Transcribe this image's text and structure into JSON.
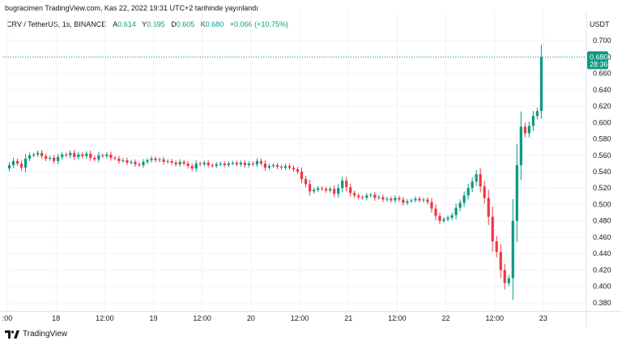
{
  "header": {
    "published_line": "bugracimen TradingView.com, Kas 22, 2022 19:31 UTC+2 tarihinde yayınlandı"
  },
  "legend": {
    "symbol": "CRV / TetherUS, 1s, BINANCE",
    "open_label": "A",
    "open_value": "0.614",
    "high_label": "Y",
    "high_value": "0.695",
    "low_label": "D",
    "low_value": "0.605",
    "close_label": "K",
    "close_value": "0.680",
    "change": "+0.066 (+10.75%)"
  },
  "currency": "USDT",
  "last_price": {
    "price": "0.680",
    "countdown": "28:36"
  },
  "footer": {
    "brand": "TradingView"
  },
  "colors": {
    "up": "#089981",
    "down": "#f23645",
    "grid": "#f0f3fa",
    "price_line": "#089981"
  },
  "chart_data": {
    "type": "candlestick",
    "y_ticks": [
      0.7,
      0.68,
      0.66,
      0.64,
      0.62,
      0.6,
      0.58,
      0.56,
      0.54,
      0.52,
      0.5,
      0.48,
      0.46,
      0.44,
      0.42,
      0.4,
      0.38
    ],
    "ylim": [
      0.37,
      0.712
    ],
    "x_ticks": [
      {
        "label": ":00",
        "t": 0
      },
      {
        "label": "18",
        "t": 12
      },
      {
        "label": "12:00",
        "t": 24
      },
      {
        "label": "19",
        "t": 36
      },
      {
        "label": "12:00",
        "t": 48
      },
      {
        "label": "20",
        "t": 60
      },
      {
        "label": "12:00",
        "t": 72
      },
      {
        "label": "21",
        "t": 84
      },
      {
        "label": "12:00",
        "t": 96
      },
      {
        "label": "22",
        "t": 108
      },
      {
        "label": "12:00",
        "t": 120
      },
      {
        "label": "23",
        "t": 132
      }
    ],
    "closes": [
      0.548,
      0.553,
      0.55,
      0.545,
      0.556,
      0.56,
      0.561,
      0.563,
      0.559,
      0.556,
      0.557,
      0.553,
      0.558,
      0.561,
      0.56,
      0.563,
      0.558,
      0.561,
      0.559,
      0.562,
      0.557,
      0.555,
      0.56,
      0.559,
      0.561,
      0.557,
      0.556,
      0.553,
      0.554,
      0.551,
      0.552,
      0.549,
      0.548,
      0.552,
      0.554,
      0.556,
      0.554,
      0.555,
      0.552,
      0.553,
      0.551,
      0.549,
      0.552,
      0.55,
      0.547,
      0.544,
      0.55,
      0.549,
      0.551,
      0.548,
      0.547,
      0.549,
      0.55,
      0.548,
      0.55,
      0.551,
      0.549,
      0.551,
      0.548,
      0.55,
      0.549,
      0.553,
      0.55,
      0.545,
      0.547,
      0.548,
      0.546,
      0.545,
      0.547,
      0.545,
      0.543,
      0.54,
      0.531,
      0.525,
      0.516,
      0.518,
      0.52,
      0.519,
      0.517,
      0.519,
      0.513,
      0.52,
      0.529,
      0.521,
      0.514,
      0.511,
      0.509,
      0.508,
      0.511,
      0.512,
      0.508,
      0.509,
      0.506,
      0.507,
      0.505,
      0.508,
      0.506,
      0.502,
      0.504,
      0.505,
      0.507,
      0.505,
      0.506,
      0.503,
      0.495,
      0.486,
      0.48,
      0.482,
      0.484,
      0.487,
      0.496,
      0.502,
      0.511,
      0.52,
      0.528,
      0.537,
      0.522,
      0.508,
      0.485,
      0.455,
      0.442,
      0.42,
      0.404,
      0.41,
      0.48,
      0.548,
      0.595,
      0.587,
      0.596,
      0.608,
      0.614,
      0.68
    ],
    "ohlc_latest": {
      "open": 0.614,
      "high": 0.695,
      "low": 0.605,
      "close": 0.68,
      "change": 0.066,
      "change_percent": 10.75
    },
    "grid": true,
    "last_price_line": 0.68
  }
}
